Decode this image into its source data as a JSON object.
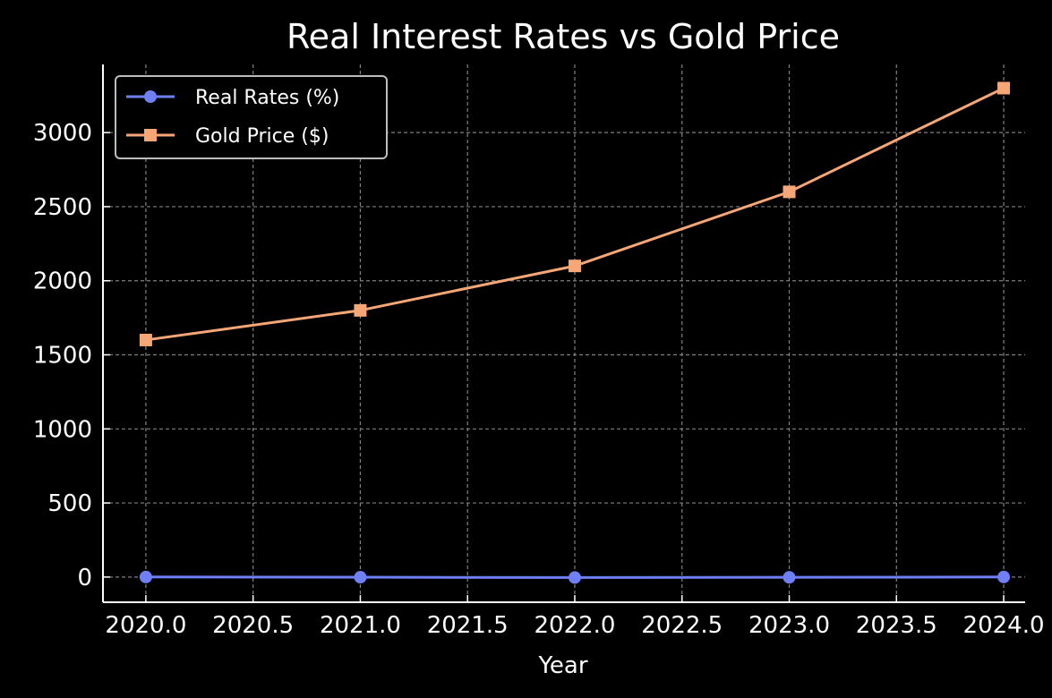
{
  "chart_data": {
    "type": "line",
    "title": "Real Interest Rates vs Gold Price",
    "xlabel": "Year",
    "ylabel": "",
    "x": [
      2020,
      2021,
      2022,
      2023,
      2024
    ],
    "xlim": [
      2019.8,
      2024.1
    ],
    "ylim": [
      -170,
      3460
    ],
    "xticks": [
      2020.0,
      2020.5,
      2021.0,
      2021.5,
      2022.0,
      2022.5,
      2023.0,
      2023.5,
      2024.0
    ],
    "xtick_labels": [
      "2020.0",
      "2020.5",
      "2021.0",
      "2021.5",
      "2022.0",
      "2022.5",
      "2023.0",
      "2023.5",
      "2024.0"
    ],
    "yticks": [
      0,
      500,
      1000,
      1500,
      2000,
      2500,
      3000
    ],
    "ytick_labels": [
      "0",
      "500",
      "1000",
      "1500",
      "2000",
      "2500",
      "3000"
    ],
    "grid": true,
    "legend_position": "top-left",
    "series": [
      {
        "name": "Real Rates (%)",
        "values": [
          0.5,
          -1.0,
          -3.5,
          -2.0,
          0.5
        ],
        "color": "#6f7ff5",
        "marker": "circle"
      },
      {
        "name": "Gold Price ($)",
        "values": [
          1600,
          1800,
          2100,
          2600,
          3300
        ],
        "color": "#f6a775",
        "marker": "square"
      }
    ]
  }
}
